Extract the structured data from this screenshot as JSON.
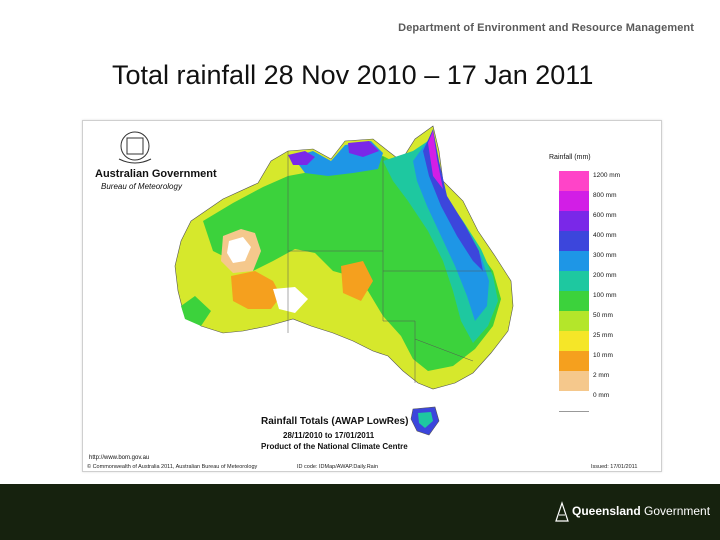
{
  "header": {
    "department": "Department of Environment and Resource Management",
    "title": "Total rainfall 28 Nov 2010 – 17 Jan 2011"
  },
  "map": {
    "logo": {
      "line1": "Australian Government",
      "line2": "Bureau of Meteorology"
    },
    "legend": {
      "title": "Rainfall (mm)",
      "items": [
        {
          "label": "1200 mm",
          "color": "#ff44c8"
        },
        {
          "label": "800 mm",
          "color": "#d21ee6"
        },
        {
          "label": "600 mm",
          "color": "#7a28e8"
        },
        {
          "label": "400 mm",
          "color": "#3c46dc"
        },
        {
          "label": "300 mm",
          "color": "#1e96e6"
        },
        {
          "label": "200 mm",
          "color": "#1ec8a0"
        },
        {
          "label": "100 mm",
          "color": "#3cd23c"
        },
        {
          "label": "50 mm",
          "color": "#b4e62a"
        },
        {
          "label": "25 mm",
          "color": "#f5e628"
        },
        {
          "label": "10 mm",
          "color": "#f5a01e"
        },
        {
          "label": "2 mm",
          "color": "#f5c88c"
        },
        {
          "label": "0 mm",
          "color": "#ffffff"
        }
      ]
    },
    "caption": {
      "line1": "Rainfall Totals (AWAP LowRes)",
      "line2": "28/11/2010 to 17/01/2011",
      "line3": "Product of the National Climate Centre"
    },
    "url": "http://www.bom.gov.au",
    "footer": {
      "copyright": "© Commonwealth of Australia 2011, Australian Bureau of Meteorology",
      "id": "ID code: IDMap/AWAP.Daily.Rain",
      "issued": "Issued: 17/01/2011"
    }
  },
  "branding": {
    "bold": "Queensland",
    "rest": " Government"
  }
}
